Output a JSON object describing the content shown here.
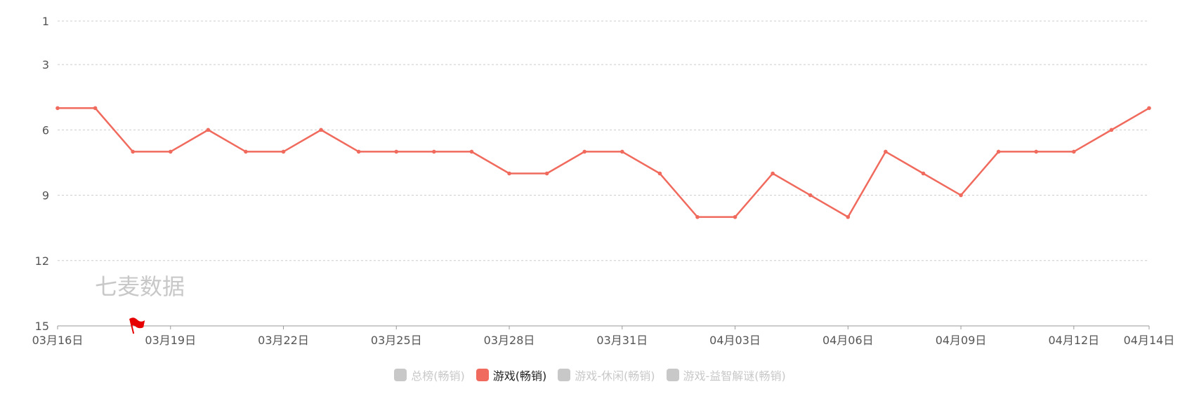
{
  "watermark": "七麦数据",
  "colors": {
    "active": "#f06a5d",
    "inactive": "#c8c8c8",
    "grid": "#cccccc",
    "axis": "#999999",
    "flag": "#e60000"
  },
  "chart_data": {
    "type": "line",
    "y_reversed": true,
    "ylim": [
      1,
      15
    ],
    "yticks": [
      1,
      3,
      6,
      9,
      12,
      15
    ],
    "x_tick_labels": [
      "03月16日",
      "03月19日",
      "03月22日",
      "03月25日",
      "03月28日",
      "03月31日",
      "04月03日",
      "04月06日",
      "04月09日",
      "04月12日",
      "04月14日"
    ],
    "x_tick_indices": [
      0,
      3,
      6,
      9,
      12,
      15,
      18,
      21,
      24,
      27,
      29
    ],
    "dates": [
      "03-16",
      "03-17",
      "03-18",
      "03-19",
      "03-20",
      "03-21",
      "03-22",
      "03-23",
      "03-24",
      "03-25",
      "03-26",
      "03-27",
      "03-28",
      "03-29",
      "03-30",
      "03-31",
      "04-01",
      "04-02",
      "04-03",
      "04-04",
      "04-05",
      "04-06",
      "04-07",
      "04-08",
      "04-09",
      "04-10",
      "04-11",
      "04-12",
      "04-13",
      "04-14"
    ],
    "series": [
      {
        "name": "游戏(畅销)",
        "active": true,
        "values": [
          5,
          5,
          7,
          7,
          6,
          7,
          7,
          6,
          7,
          7,
          7,
          7,
          8,
          8,
          7,
          7,
          8,
          10,
          10,
          8,
          9,
          10,
          7,
          8,
          9,
          7,
          7,
          7,
          6,
          5
        ]
      }
    ],
    "flag_date": "03-18",
    "legend": [
      {
        "label": "总榜(畅销)",
        "active": false
      },
      {
        "label": "游戏(畅销)",
        "active": true
      },
      {
        "label": "游戏-休闲(畅销)",
        "active": false
      },
      {
        "label": "游戏-益智解谜(畅销)",
        "active": false
      }
    ]
  }
}
